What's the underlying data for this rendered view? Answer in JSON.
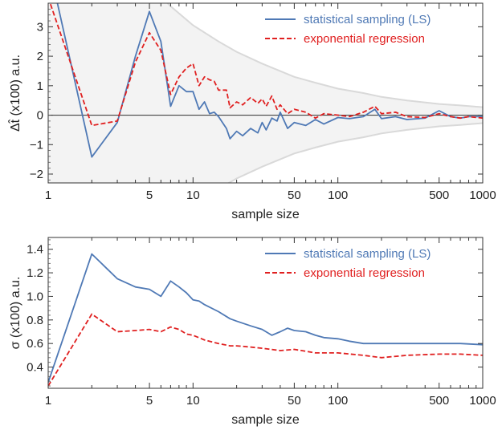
{
  "chart_data": [
    {
      "type": "line",
      "xscale": "log",
      "xlim": [
        1,
        1000
      ],
      "ylim": [
        -2.3,
        3.8
      ],
      "xlabel": "sample size",
      "ylabel": "Δt̂ (x100) a.u.",
      "xticks": [
        1,
        5,
        10,
        50,
        100,
        500,
        1000
      ],
      "xtick_labels": [
        "1",
        "5",
        "10",
        "50",
        "100",
        "500",
        "1000"
      ],
      "yticks": [
        -2,
        -1,
        0,
        1,
        2,
        3
      ],
      "ytick_labels": [
        "−2",
        "−1",
        "0",
        "1",
        "2",
        "3"
      ],
      "zero_line": true,
      "band": {
        "color": "#f3f3f3",
        "edge_color": "#d9d9d9",
        "x": [
          1,
          2,
          3,
          5,
          7,
          10,
          15,
          20,
          30,
          50,
          70,
          100,
          150,
          200,
          300,
          500,
          700,
          1000
        ],
        "upper": [
          6.0,
          6.0,
          5.6,
          4.4,
          3.7,
          3.05,
          2.5,
          2.15,
          1.75,
          1.3,
          1.1,
          0.9,
          0.75,
          0.62,
          0.5,
          0.38,
          0.33,
          0.27
        ],
        "lower": [
          -6.0,
          -6.0,
          -5.6,
          -4.4,
          -3.7,
          -3.05,
          -2.5,
          -2.15,
          -1.75,
          -1.3,
          -1.1,
          -0.9,
          -0.75,
          -0.62,
          -0.5,
          -0.38,
          -0.33,
          -0.27
        ]
      },
      "series": [
        {
          "name": "statistical sampling (LS)",
          "color": "#4f79b5",
          "dash": "solid",
          "x": [
            1,
            2,
            3,
            4,
            5,
            6,
            7,
            8,
            9,
            10,
            11,
            12,
            13,
            14,
            15,
            17,
            18,
            20,
            22,
            25,
            28,
            30,
            32,
            35,
            38,
            40,
            45,
            50,
            60,
            70,
            80,
            100,
            120,
            150,
            180,
            200,
            250,
            300,
            400,
            500,
            600,
            700,
            800,
            1000
          ],
          "y": [
            5.2,
            -1.42,
            -0.25,
            2.0,
            3.52,
            2.5,
            0.3,
            1.0,
            0.8,
            0.8,
            0.2,
            0.45,
            0.05,
            0.1,
            -0.05,
            -0.45,
            -0.8,
            -0.55,
            -0.7,
            -0.45,
            -0.6,
            -0.25,
            -0.5,
            -0.1,
            -0.2,
            0.1,
            -0.45,
            -0.25,
            -0.35,
            -0.15,
            -0.3,
            -0.08,
            -0.12,
            -0.05,
            0.2,
            -0.12,
            -0.05,
            -0.15,
            -0.1,
            0.15,
            -0.05,
            -0.1,
            -0.05,
            -0.05
          ]
        },
        {
          "name": "exponential regression",
          "color": "#e02020",
          "dash": "dashed",
          "x": [
            1,
            2,
            3,
            4,
            5,
            6,
            7,
            8,
            9,
            10,
            11,
            12,
            13,
            14,
            15,
            17,
            18,
            20,
            22,
            25,
            28,
            30,
            32,
            35,
            38,
            40,
            45,
            50,
            60,
            70,
            80,
            100,
            120,
            150,
            180,
            200,
            250,
            300,
            400,
            500,
            600,
            700,
            800,
            1000
          ],
          "y": [
            4.0,
            -0.35,
            -0.2,
            1.8,
            2.8,
            2.2,
            0.7,
            1.3,
            1.6,
            1.75,
            1.0,
            1.3,
            1.2,
            1.15,
            0.85,
            0.85,
            0.25,
            0.45,
            0.35,
            0.6,
            0.4,
            0.55,
            0.3,
            0.65,
            0.2,
            0.35,
            0.05,
            0.2,
            0.1,
            -0.1,
            0.05,
            0.0,
            -0.05,
            0.1,
            0.3,
            0.05,
            0.1,
            -0.05,
            -0.08,
            0.05,
            -0.05,
            -0.1,
            -0.05,
            -0.1
          ]
        }
      ],
      "legend": "top-right"
    },
    {
      "type": "line",
      "xscale": "log",
      "xlim": [
        1,
        1000
      ],
      "ylim": [
        0.22,
        1.5
      ],
      "xlabel": "sample size",
      "ylabel": "σ (x100) a.u.",
      "xticks": [
        1,
        5,
        10,
        50,
        100,
        500,
        1000
      ],
      "xtick_labels": [
        "1",
        "5",
        "10",
        "50",
        "100",
        "500",
        "1000"
      ],
      "yticks": [
        0.4,
        0.6,
        0.8,
        1.0,
        1.2,
        1.4
      ],
      "ytick_labels": [
        "0.4",
        "0.6",
        "0.8",
        "1.0",
        "1.2",
        "1.4"
      ],
      "series": [
        {
          "name": "statistical sampling (LS)",
          "color": "#4f79b5",
          "dash": "solid",
          "x": [
            1,
            2,
            3,
            4,
            5,
            6,
            7,
            8,
            9,
            10,
            11,
            12,
            15,
            18,
            20,
            25,
            30,
            35,
            40,
            45,
            50,
            60,
            70,
            80,
            100,
            120,
            150,
            200,
            300,
            500,
            700,
            1000
          ],
          "y": [
            0.27,
            1.36,
            1.15,
            1.08,
            1.06,
            1.0,
            1.13,
            1.08,
            1.03,
            0.97,
            0.96,
            0.93,
            0.87,
            0.81,
            0.79,
            0.75,
            0.72,
            0.67,
            0.7,
            0.73,
            0.71,
            0.7,
            0.67,
            0.65,
            0.64,
            0.62,
            0.6,
            0.6,
            0.6,
            0.6,
            0.6,
            0.59
          ]
        },
        {
          "name": "exponential regression",
          "color": "#e02020",
          "dash": "dashed",
          "x": [
            1,
            2,
            3,
            4,
            5,
            6,
            7,
            8,
            9,
            10,
            12,
            15,
            18,
            20,
            25,
            30,
            40,
            50,
            70,
            100,
            150,
            200,
            300,
            500,
            700,
            1000
          ],
          "y": [
            0.24,
            0.85,
            0.7,
            0.71,
            0.72,
            0.7,
            0.74,
            0.72,
            0.68,
            0.67,
            0.63,
            0.6,
            0.58,
            0.58,
            0.57,
            0.56,
            0.54,
            0.55,
            0.52,
            0.52,
            0.5,
            0.48,
            0.5,
            0.51,
            0.51,
            0.5
          ]
        }
      ],
      "legend": "top-right"
    }
  ]
}
